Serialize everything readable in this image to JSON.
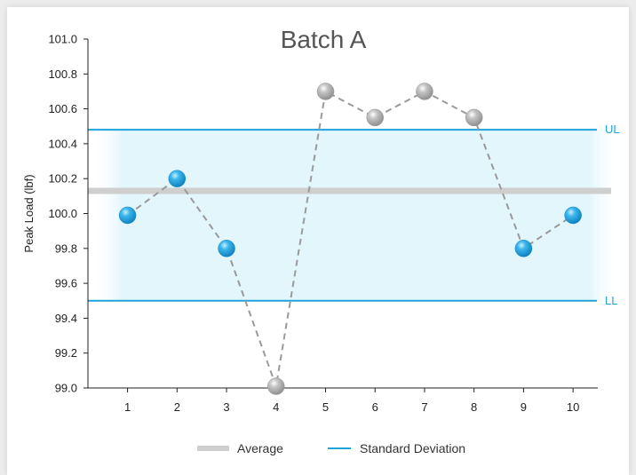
{
  "chart_data": {
    "type": "line",
    "title": "Batch A",
    "xlabel": "",
    "ylabel": "Peak Load (lbf)",
    "x": [
      1,
      2,
      3,
      4,
      5,
      6,
      7,
      8,
      9,
      10
    ],
    "series": [
      {
        "values": [
          99.99,
          100.2,
          99.8,
          99.01,
          100.7,
          100.55,
          100.7,
          100.55,
          99.8,
          99.99
        ]
      }
    ],
    "in_limits": [
      true,
      true,
      true,
      false,
      false,
      false,
      false,
      false,
      true,
      true
    ],
    "average": 100.13,
    "upper_limit": 100.48,
    "lower_limit": 99.5,
    "upper_limit_label": "UL",
    "lower_limit_label": "LL",
    "xlim": [
      0.2,
      10.5
    ],
    "ylim": [
      99.0,
      101.0
    ],
    "yticks": [
      "101.0",
      "100.8",
      "100.6",
      "100.4",
      "100.2",
      "100.0",
      "99.8",
      "99.6",
      "99.4",
      "99.2",
      "99.0"
    ],
    "xticks": [
      "1",
      "2",
      "3",
      "4",
      "5",
      "6",
      "7",
      "8",
      "9",
      "10"
    ],
    "legend": [
      {
        "label": "Average",
        "color": "#cfcfcf"
      },
      {
        "label": "Standard Deviation",
        "color": "#1fa3d9"
      }
    ],
    "legend_position": "bottom",
    "grid": false,
    "colors": {
      "limit_line": "#1fa3d9",
      "band": "#e2f6fc",
      "average_line": "#cfcfcf",
      "in_point": "#1e9bd6",
      "out_point": "#a9a9a9",
      "connector": "#9a9a9a"
    }
  }
}
